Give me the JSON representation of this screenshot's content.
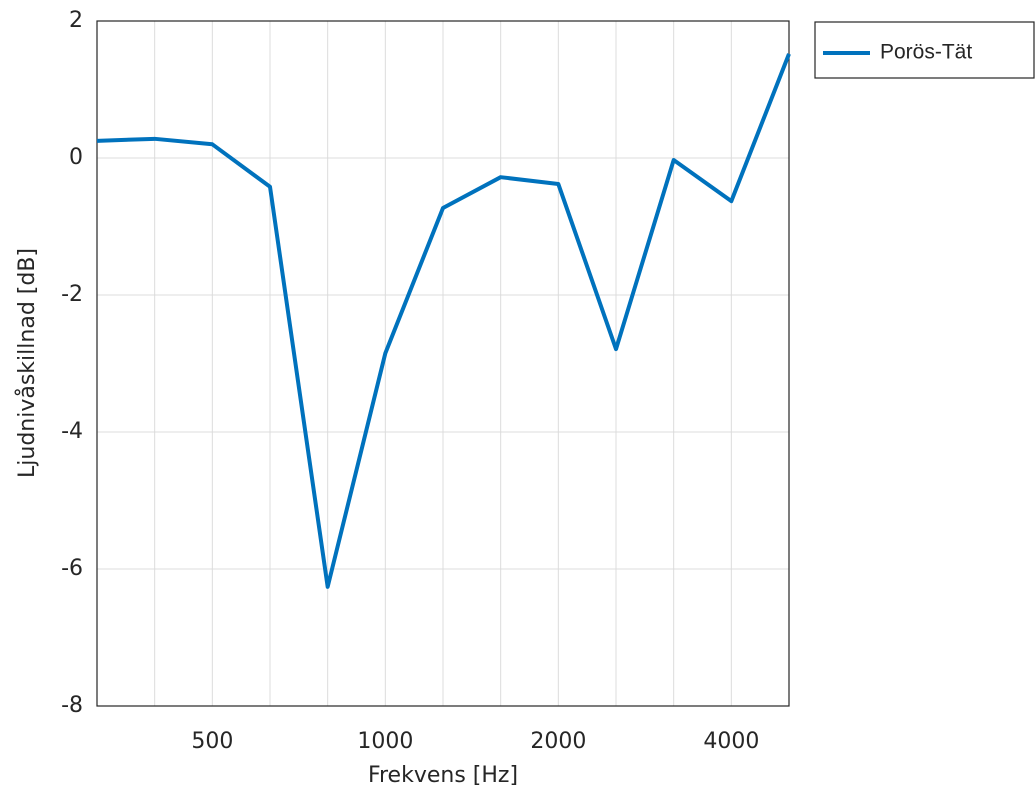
{
  "chart_data": {
    "type": "line",
    "x_label": "Frekvens [Hz]",
    "y_label": "Ljudnivåskillnad [dB]",
    "categories": [
      null,
      null,
      "500",
      null,
      null,
      "1000",
      null,
      null,
      "2000",
      null,
      null,
      "4000",
      null
    ],
    "series": [
      {
        "name": "Porös-Tät",
        "color": "#0072bd",
        "values": [
          0.25,
          0.28,
          0.2,
          -0.42,
          -6.26,
          -2.85,
          -0.73,
          -0.28,
          -0.38,
          -2.79,
          -0.03,
          -0.63,
          1.52
        ]
      }
    ],
    "ylim": [
      -8,
      2
    ],
    "yticks": [
      -8,
      -6,
      -4,
      -2,
      0,
      2
    ],
    "grid": true,
    "legend": "outside-top-right"
  }
}
